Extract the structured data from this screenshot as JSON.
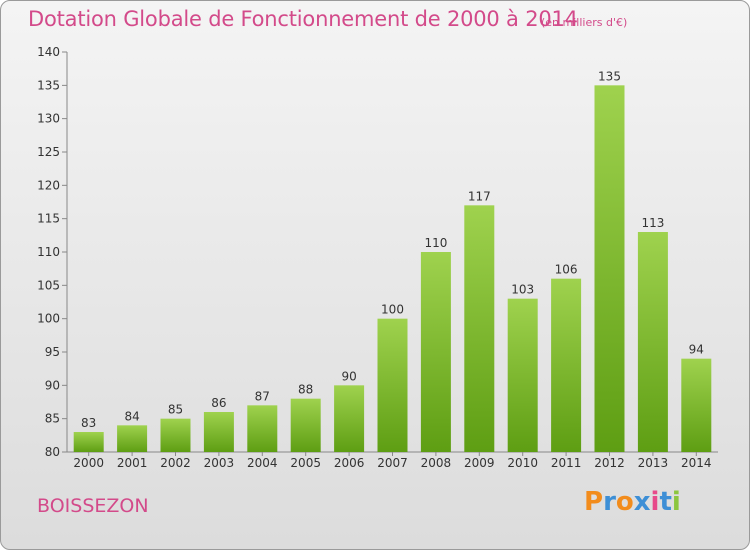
{
  "header": {
    "title": "Dotation Globale de Fonctionnement de 2000 à 2014",
    "unit_note": "(en milliers d'€)"
  },
  "footer": {
    "town": "BOISSEZON",
    "logo_text": "Proxiti"
  },
  "colors": {
    "title": "#d34a8a",
    "bar_top": "#9fd24e",
    "bar_bottom": "#5e9e13",
    "logo_letters": [
      "#f28c1c",
      "#3d8fd6",
      "#f28c1c",
      "#3d8fd6",
      "#e74a8a",
      "#3d8fd6",
      "#8cc63f"
    ]
  },
  "chart_data": {
    "type": "bar",
    "categories": [
      "2000",
      "2001",
      "2002",
      "2003",
      "2004",
      "2005",
      "2006",
      "2007",
      "2008",
      "2009",
      "2010",
      "2011",
      "2012",
      "2013",
      "2014"
    ],
    "values": [
      83,
      84,
      85,
      86,
      87,
      88,
      90,
      100,
      110,
      117,
      103,
      106,
      135,
      113,
      94
    ],
    "ylim": [
      80,
      140
    ],
    "yticks": [
      80,
      85,
      90,
      95,
      100,
      105,
      110,
      115,
      120,
      125,
      130,
      135,
      140
    ],
    "grid": false,
    "data_labels": true
  }
}
